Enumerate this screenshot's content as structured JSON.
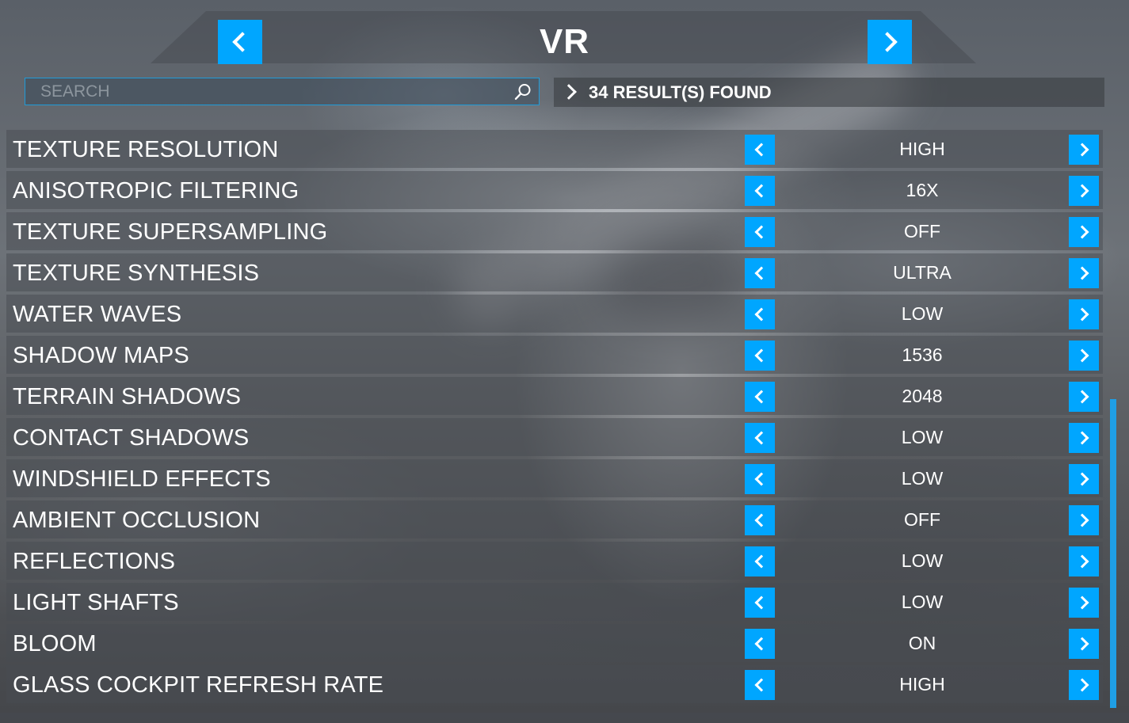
{
  "header": {
    "title": "VR",
    "prev_icon": "chevron-left-icon",
    "next_icon": "chevron-right-icon"
  },
  "search": {
    "placeholder": "SEARCH",
    "value": "",
    "icon": "search-icon"
  },
  "results": {
    "text": "34 RESULT(S) FOUND"
  },
  "colors": {
    "accent": "#00a6ff"
  },
  "settings": [
    {
      "label": "TEXTURE RESOLUTION",
      "value": "HIGH"
    },
    {
      "label": "ANISOTROPIC FILTERING",
      "value": "16X"
    },
    {
      "label": "TEXTURE SUPERSAMPLING",
      "value": "OFF"
    },
    {
      "label": "TEXTURE SYNTHESIS",
      "value": "ULTRA"
    },
    {
      "label": "WATER WAVES",
      "value": "LOW"
    },
    {
      "label": "SHADOW MAPS",
      "value": "1536"
    },
    {
      "label": "TERRAIN SHADOWS",
      "value": "2048"
    },
    {
      "label": "CONTACT SHADOWS",
      "value": "LOW"
    },
    {
      "label": "WINDSHIELD EFFECTS",
      "value": "LOW"
    },
    {
      "label": "AMBIENT OCCLUSION",
      "value": "OFF"
    },
    {
      "label": "REFLECTIONS",
      "value": "LOW"
    },
    {
      "label": "LIGHT SHAFTS",
      "value": "LOW"
    },
    {
      "label": "BLOOM",
      "value": "ON"
    },
    {
      "label": "GLASS COCKPIT REFRESH RATE",
      "value": "HIGH"
    }
  ]
}
